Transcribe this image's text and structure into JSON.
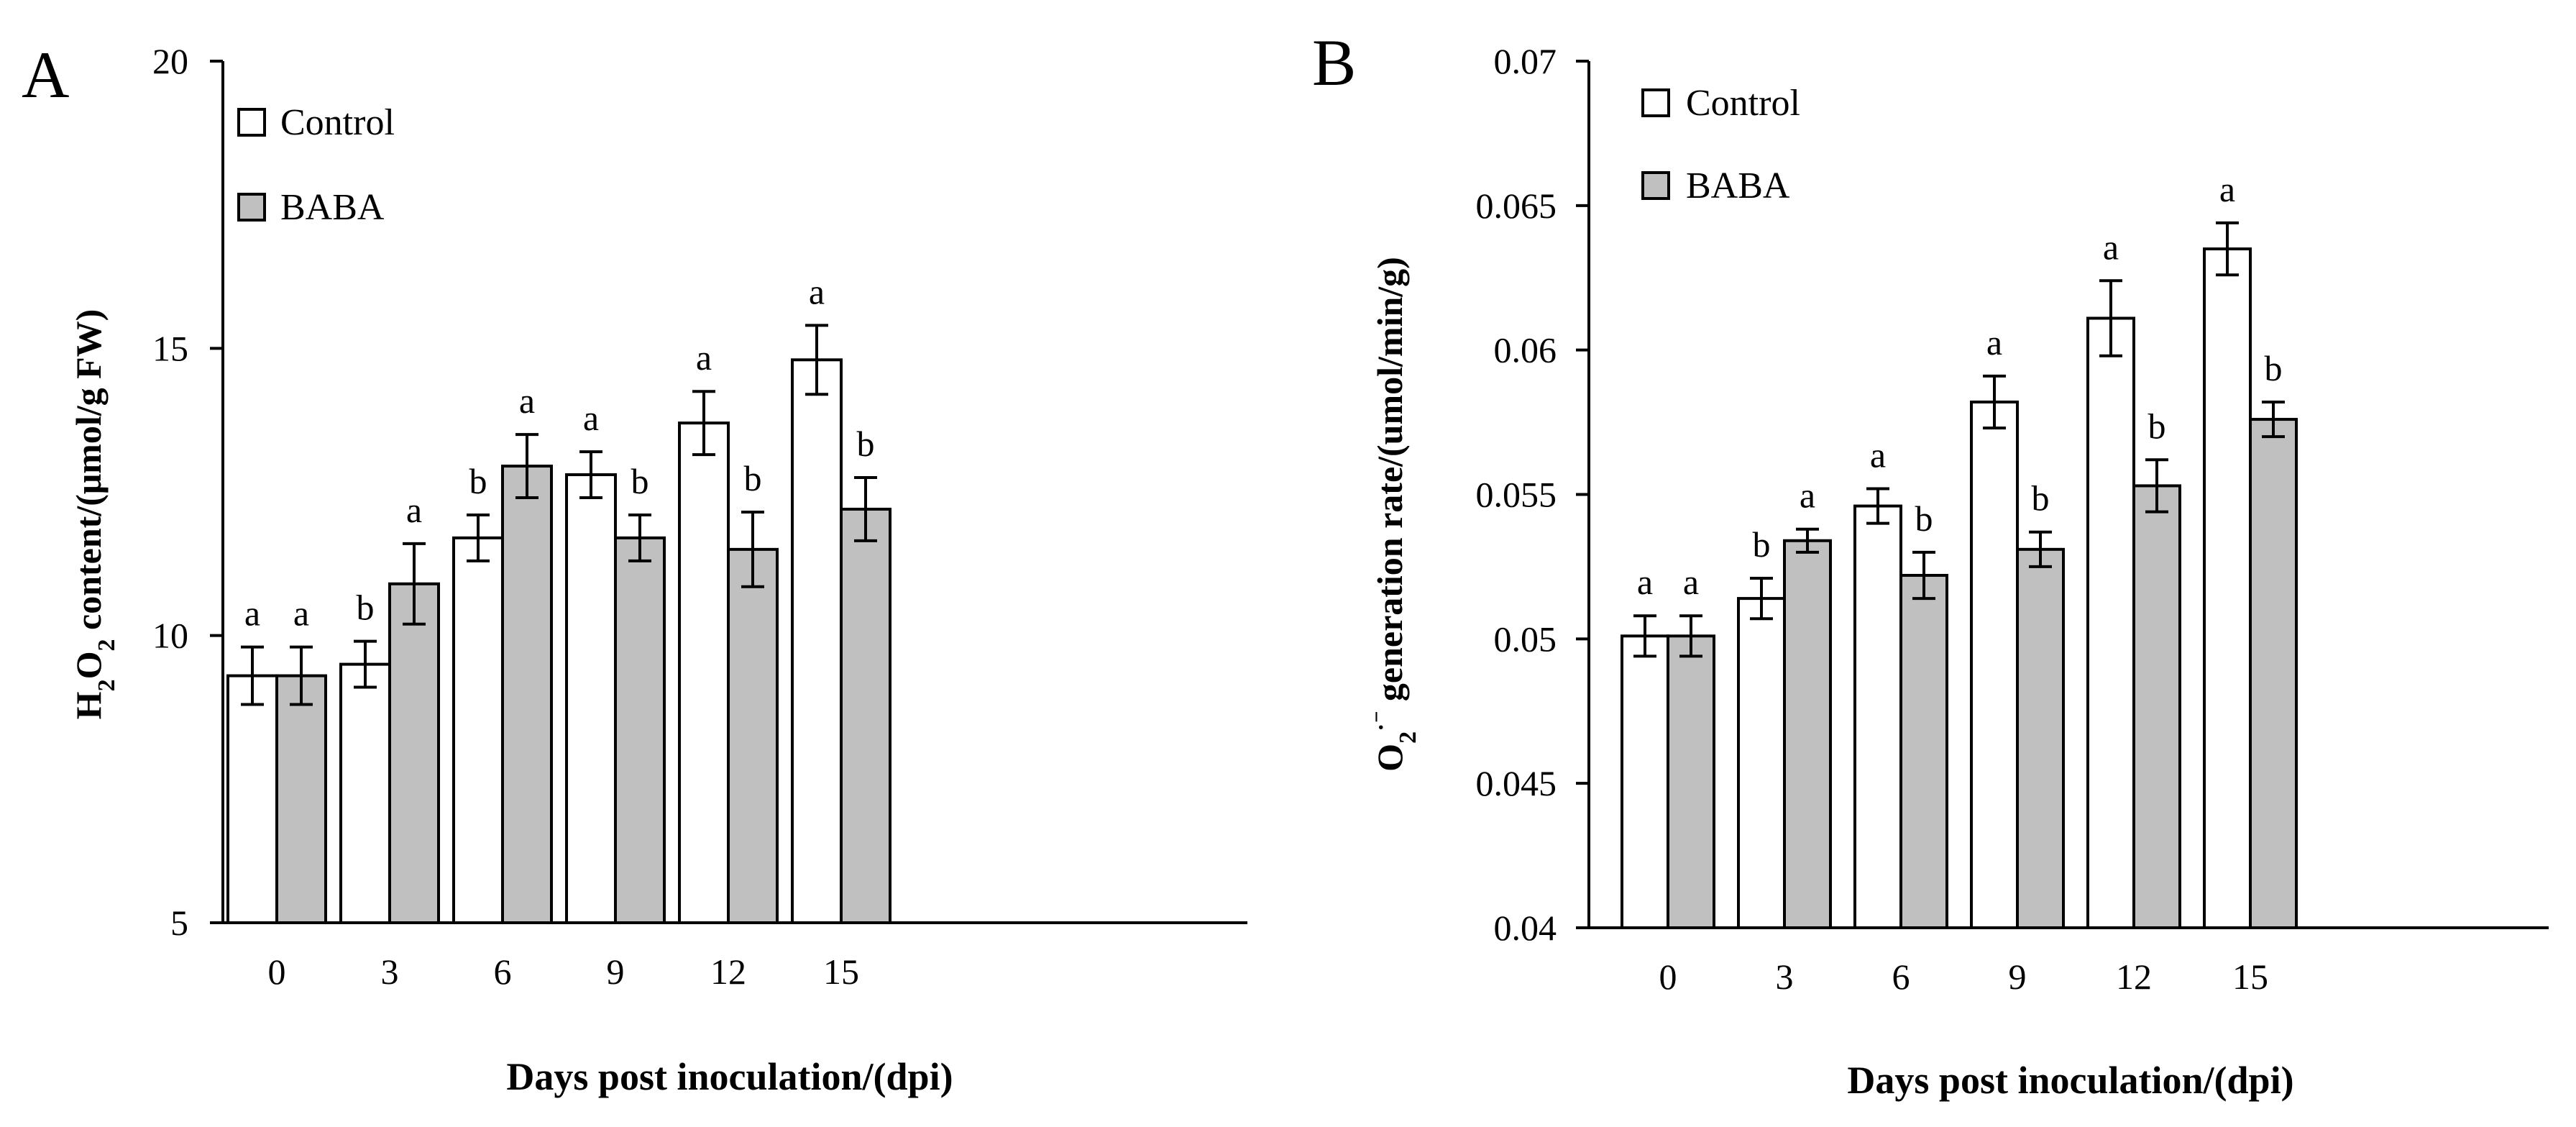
{
  "colors": {
    "control": "#ffffff",
    "baba": "#c0c0c0",
    "stroke": "#000000"
  },
  "chart_data": [
    {
      "panel": "A",
      "type": "bar",
      "categories": [
        "0",
        "3",
        "6",
        "9",
        "12",
        "15"
      ],
      "xlabel": "Days post inoculation/(dpi)",
      "ylabel": {
        "main": "H",
        "sub1": "2",
        "mid": "O",
        "sub2": "2",
        "rest": " content/(μmol/g FW)"
      },
      "ylim": [
        5,
        20
      ],
      "yticks": [
        "5",
        "10",
        "15",
        "20"
      ],
      "legend": [
        "Control",
        "BABA"
      ],
      "series": [
        {
          "name": "Control",
          "values": [
            9.3,
            9.5,
            11.7,
            12.8,
            13.7,
            14.8
          ],
          "errors": [
            0.5,
            0.4,
            0.4,
            0.4,
            0.55,
            0.6
          ],
          "labels": [
            "a",
            "b",
            "b",
            "a",
            "a",
            "a"
          ]
        },
        {
          "name": "BABA",
          "values": [
            9.3,
            10.9,
            12.95,
            11.7,
            11.5,
            12.2
          ],
          "errors": [
            0.5,
            0.7,
            0.55,
            0.4,
            0.65,
            0.55
          ],
          "labels": [
            "a",
            "a",
            "a",
            "b",
            "b",
            "b"
          ]
        }
      ]
    },
    {
      "panel": "B",
      "type": "bar",
      "categories": [
        "0",
        "3",
        "6",
        "9",
        "12",
        "15"
      ],
      "xlabel": "Days post inoculation/(dpi)",
      "ylabel": {
        "main": "O",
        "sub1": "2",
        "mid": "·⁻",
        "rest": " generation rate/(umol/min/g)"
      },
      "ylim": [
        0.04,
        0.07
      ],
      "yticks": [
        "0.04",
        "0.045",
        "0.05",
        "0.055",
        "0.06",
        "0.065",
        "0.07"
      ],
      "legend": [
        "Control",
        "BABA"
      ],
      "series": [
        {
          "name": "Control",
          "values": [
            0.0501,
            0.0514,
            0.0546,
            0.0582,
            0.0611,
            0.0635
          ],
          "errors": [
            0.0007,
            0.0007,
            0.0006,
            0.0009,
            0.0013,
            0.0009
          ],
          "labels": [
            "a",
            "b",
            "a",
            "a",
            "a",
            "a"
          ]
        },
        {
          "name": "BABA",
          "values": [
            0.0501,
            0.0534,
            0.0522,
            0.0531,
            0.0553,
            0.0576
          ],
          "errors": [
            0.0007,
            0.0004,
            0.0008,
            0.0006,
            0.0009,
            0.0006
          ],
          "labels": [
            "a",
            "a",
            "b",
            "b",
            "b",
            "b"
          ]
        }
      ]
    }
  ]
}
